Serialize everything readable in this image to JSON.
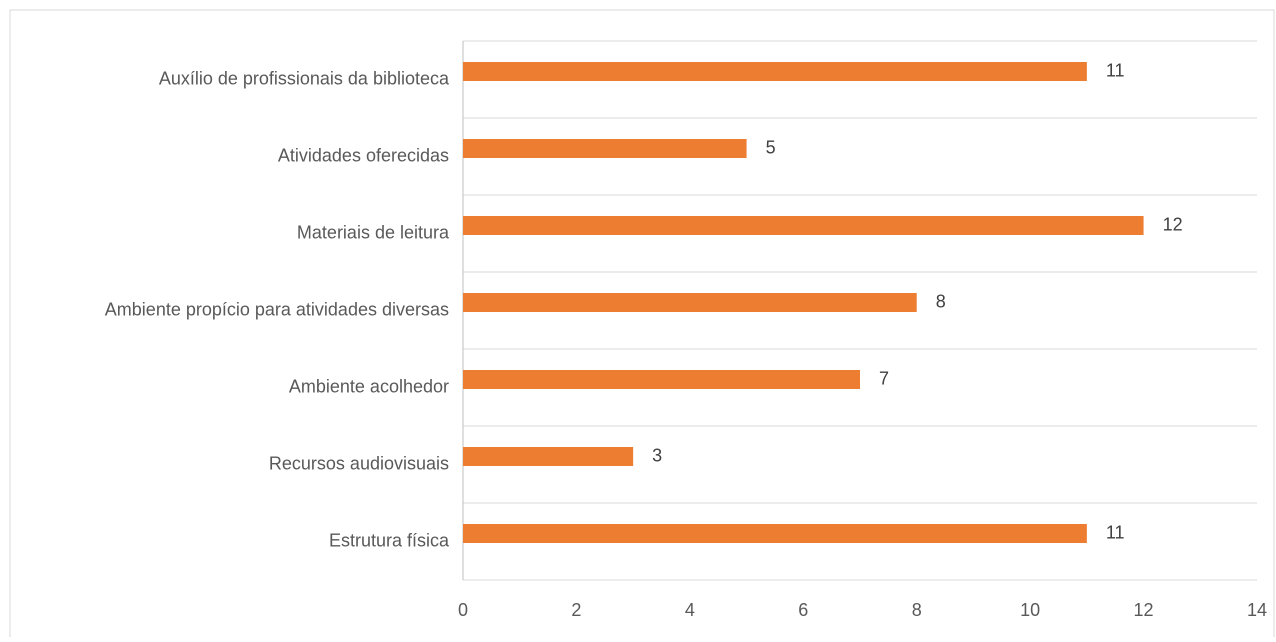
{
  "chart_data": {
    "type": "hbar",
    "categories": [
      "Auxílio de profissionais da biblioteca",
      "Atividades oferecidas",
      "Materiais de leitura",
      "Ambiente propício para atividades diversas",
      "Ambiente acolhedor",
      "Recursos audiovisuais",
      "Estrutura física"
    ],
    "values": [
      11,
      5,
      12,
      8,
      7,
      3,
      11
    ],
    "color": "#ED7D31",
    "xlim": [
      0,
      14
    ],
    "xticks": [
      0,
      2,
      4,
      6,
      8,
      10,
      12,
      14
    ],
    "grid": true
  }
}
